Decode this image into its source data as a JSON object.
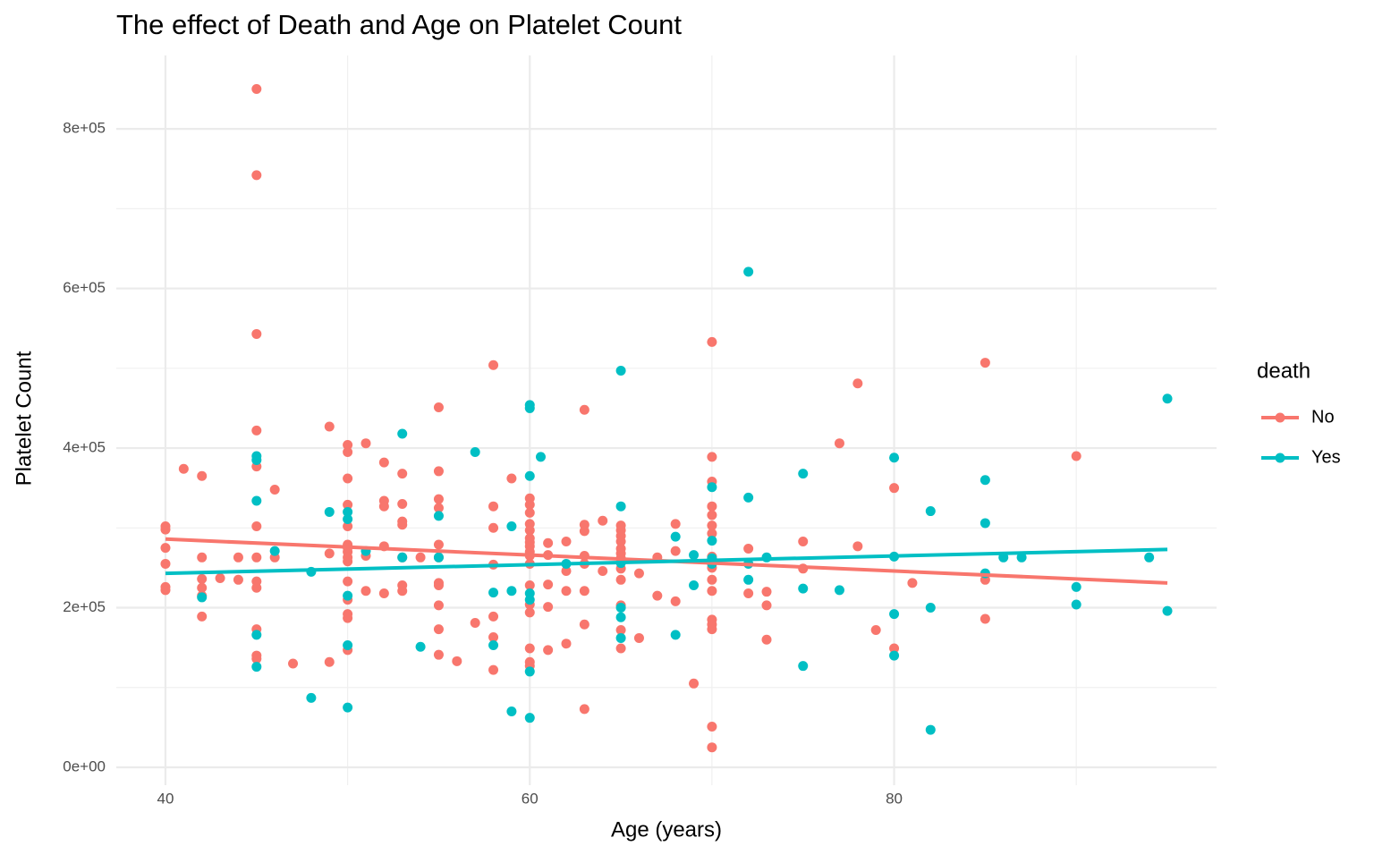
{
  "chart_data": {
    "type": "scatter",
    "title": "The effect of Death and Age on Platelet Count",
    "x_label": "Age (years)",
    "y_label": "Platelet Count",
    "legend_title": "death",
    "legend_position": "right",
    "grid": true,
    "xlim": [
      37.3,
      97.7
    ],
    "xticks": [
      40,
      60,
      80
    ],
    "ylim": [
      -22400,
      892000
    ],
    "yticks": [
      {
        "value": 0,
        "label": "0e+00"
      },
      {
        "value": 200000,
        "label": "2e+05"
      },
      {
        "value": 400000,
        "label": "4e+05"
      },
      {
        "value": 600000,
        "label": "6e+05"
      },
      {
        "value": 800000,
        "label": "8e+05"
      }
    ],
    "series": [
      {
        "name": "No",
        "color": "#F8766D",
        "x": [
          40,
          40,
          40,
          40,
          40,
          40,
          41,
          42,
          42,
          42,
          42,
          42,
          42,
          43,
          44,
          44,
          45,
          45,
          45,
          45,
          45,
          45,
          45,
          45,
          45,
          45,
          45,
          45,
          46,
          46,
          47,
          49,
          49,
          49,
          50,
          50,
          50,
          50,
          50,
          50,
          50,
          50,
          50,
          50,
          50,
          50,
          50,
          50,
          50,
          51,
          51,
          51,
          52,
          52,
          52,
          52,
          52,
          53,
          53,
          53,
          53,
          53,
          53,
          53,
          54,
          55,
          55,
          55,
          55,
          55,
          55,
          55,
          55,
          55,
          55,
          55,
          56,
          57,
          58,
          58,
          58,
          58,
          58,
          58,
          58,
          59,
          60,
          60,
          60,
          60,
          60,
          60,
          60,
          60,
          60,
          60,
          60,
          60,
          60,
          60,
          60,
          60,
          60,
          61,
          61,
          61,
          61,
          61,
          62,
          62,
          62,
          62,
          63,
          63,
          63,
          63,
          63,
          63,
          63,
          63,
          64,
          64,
          65,
          65,
          65,
          65,
          65,
          65,
          65,
          65,
          65,
          65,
          65,
          65,
          66,
          66,
          67,
          67,
          68,
          68,
          68,
          69,
          70,
          70,
          70,
          70,
          70,
          70,
          70,
          70,
          70,
          70,
          70,
          70,
          70,
          70,
          70,
          70,
          72,
          72,
          73,
          73,
          73,
          75,
          75,
          77,
          78,
          78,
          79,
          80,
          80,
          81,
          85,
          85,
          85,
          90
        ],
        "values": [
          302000,
          298000,
          275000,
          255000,
          226000,
          222000,
          374000,
          365000,
          263000,
          236000,
          225000,
          215000,
          189000,
          237000,
          263000,
          235000,
          850000,
          742000,
          543000,
          422000,
          377000,
          302000,
          263000,
          233000,
          225000,
          173000,
          140000,
          136000,
          348000,
          263000,
          130000,
          427000,
          268000,
          132000,
          404000,
          395000,
          362000,
          329000,
          302000,
          279000,
          275000,
          270000,
          263000,
          258000,
          233000,
          210000,
          192000,
          187000,
          147000,
          406000,
          265000,
          221000,
          382000,
          334000,
          327000,
          277000,
          218000,
          368000,
          330000,
          308000,
          304000,
          263000,
          228000,
          221000,
          263000,
          451000,
          371000,
          336000,
          325000,
          279000,
          263000,
          231000,
          228000,
          203000,
          173000,
          141000,
          133000,
          181000,
          504000,
          327000,
          300000,
          254000,
          189000,
          163000,
          122000,
          362000,
          337000,
          329000,
          319000,
          305000,
          297000,
          287000,
          282000,
          277000,
          270000,
          265000,
          255000,
          228000,
          204000,
          194000,
          149000,
          132000,
          127000,
          201000,
          281000,
          266000,
          229000,
          147000,
          283000,
          246000,
          221000,
          155000,
          448000,
          304000,
          296000,
          265000,
          255000,
          221000,
          179000,
          73000,
          309000,
          246000,
          303000,
          297000,
          290000,
          283000,
          274000,
          268000,
          262000,
          249000,
          235000,
          203000,
          172000,
          149000,
          243000,
          162000,
          263000,
          215000,
          305000,
          271000,
          208000,
          105000,
          533000,
          389000,
          358000,
          327000,
          316000,
          303000,
          293000,
          264000,
          250000,
          235000,
          221000,
          185000,
          179000,
          173000,
          51000,
          25000,
          274000,
          218000,
          220000,
          203000,
          160000,
          283000,
          249000,
          406000,
          481000,
          277000,
          172000,
          350000,
          149000,
          231000,
          507000,
          235000,
          186000,
          390000
        ],
        "fit_x": [
          40,
          95
        ],
        "fit_values": [
          286000,
          231000
        ]
      },
      {
        "name": "Yes",
        "color": "#00BFC4",
        "x": [
          42,
          45,
          45,
          45,
          45,
          45,
          46,
          48,
          48,
          49,
          50,
          50,
          50,
          50,
          50,
          51,
          53,
          53,
          54,
          55,
          55,
          57,
          58,
          58,
          59,
          59,
          59,
          60,
          60,
          60,
          60,
          60,
          60,
          60,
          60.6,
          62,
          65,
          65,
          65,
          65,
          65,
          65,
          68,
          68,
          69,
          69,
          70,
          70,
          70,
          70,
          72,
          72,
          72,
          72,
          73,
          75,
          75,
          75,
          77,
          80,
          80,
          80,
          80,
          82,
          82,
          82,
          85,
          85,
          85,
          86,
          87,
          90,
          90,
          94,
          95,
          95
        ],
        "values": [
          213000,
          390000,
          385000,
          334000,
          166000,
          126000,
          271000,
          245000,
          87000,
          320000,
          320000,
          311000,
          215000,
          153000,
          75000,
          271000,
          418000,
          263000,
          151000,
          315000,
          263000,
          395000,
          219000,
          153000,
          302000,
          221000,
          70000,
          454000,
          450000,
          365000,
          218000,
          210000,
          120000,
          62000,
          389000,
          255000,
          497000,
          327000,
          256000,
          200000,
          188000,
          162000,
          289000,
          166000,
          266000,
          228000,
          351000,
          284000,
          262000,
          255000,
          621000,
          338000,
          255000,
          235000,
          263000,
          368000,
          224000,
          127000,
          222000,
          388000,
          264000,
          192000,
          140000,
          321000,
          200000,
          47000,
          360000,
          306000,
          243000,
          263000,
          263000,
          226000,
          204000,
          263000,
          462000,
          196000
        ],
        "fit_x": [
          40,
          95
        ],
        "fit_values": [
          243000,
          273000
        ]
      }
    ]
  }
}
